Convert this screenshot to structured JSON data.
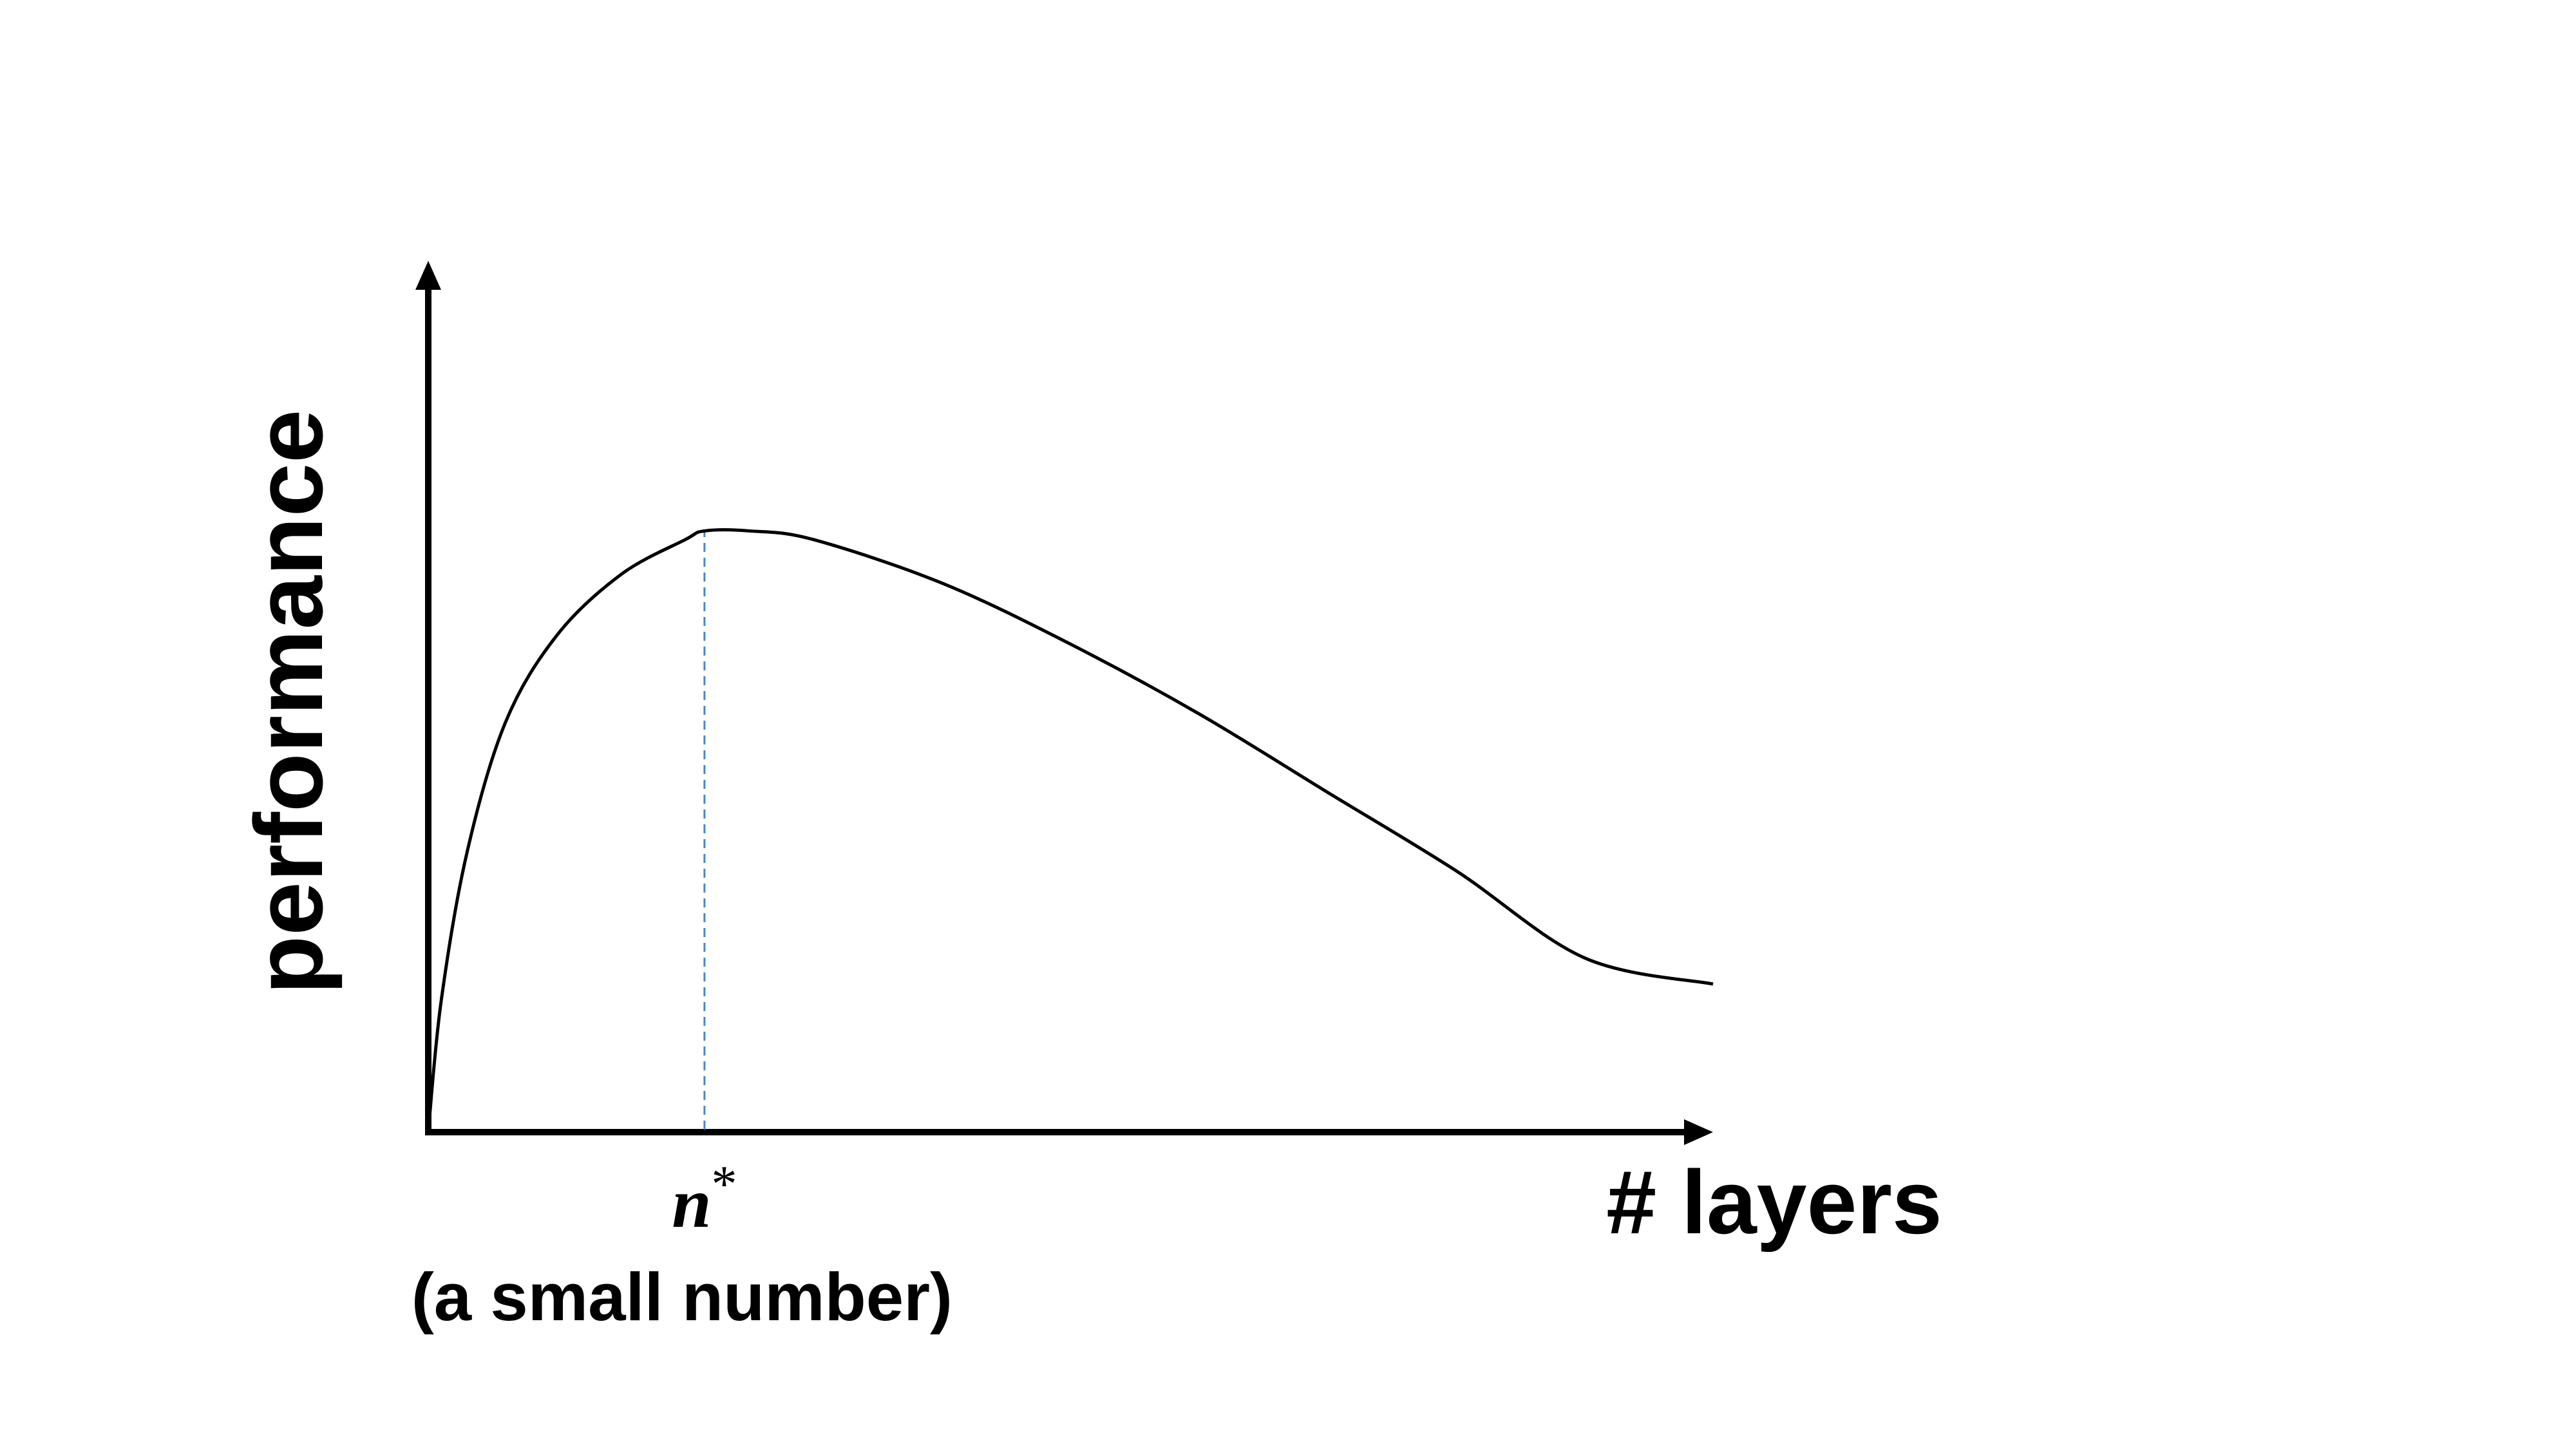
{
  "chart_data": {
    "type": "line",
    "title": "",
    "xlabel": "# layers",
    "ylabel": "performance",
    "x_unit": "relative position along x-axis (0 = origin, 1 = arrow tip)",
    "y_unit": "relative height (0 = x-axis, 1 = arrow tip)",
    "xlim": [
      0,
      1
    ],
    "ylim": [
      0,
      1
    ],
    "grid": false,
    "legend": "none",
    "series": [
      {
        "name": "performance curve",
        "x": [
          0.0,
          0.01,
          0.03,
          0.06,
          0.1,
          0.15,
          0.2,
          0.215,
          0.25,
          0.3,
          0.4,
          0.5,
          0.6,
          0.7,
          0.8,
          0.9,
          1.0
        ],
        "y": [
          0.0,
          0.15,
          0.32,
          0.47,
          0.57,
          0.64,
          0.68,
          0.69,
          0.69,
          0.68,
          0.63,
          0.56,
          0.48,
          0.39,
          0.3,
          0.2,
          0.17
        ]
      }
    ],
    "annotations": [
      {
        "type": "vertical-dashed-line",
        "x": 0.215,
        "label_math": "n",
        "label_sup": "*",
        "label_sub": "(a small number)",
        "color": "#4a86c8"
      }
    ],
    "colors": {
      "axis": "#000000",
      "curve": "#000000",
      "marker_line": "#4a86c8"
    }
  }
}
